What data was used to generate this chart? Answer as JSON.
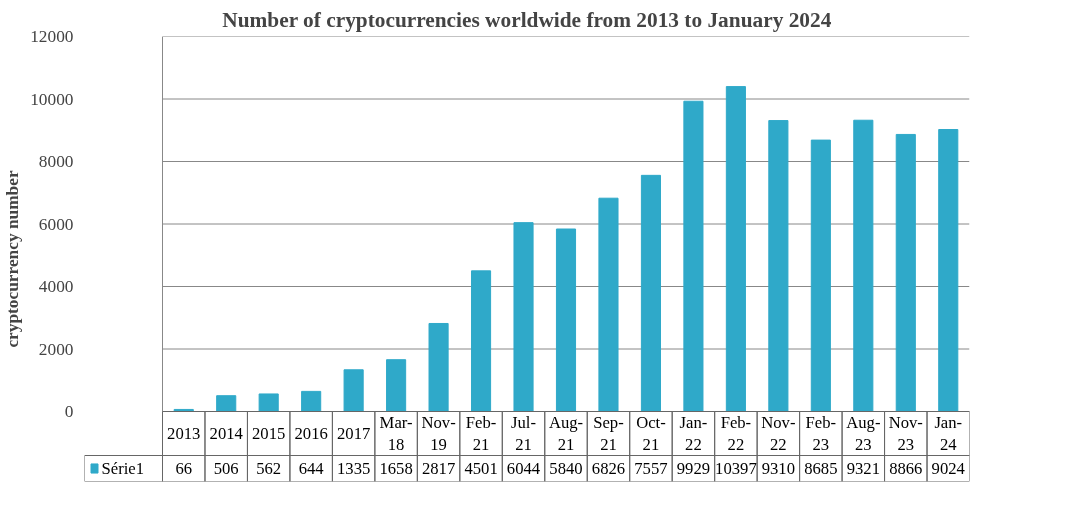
{
  "chart_data": {
    "type": "bar",
    "title": "Number of cryptocurrencies worldwide from 2013 to January 2024",
    "ylabel": "cryptocurrency number",
    "categories": [
      "2013",
      "2014",
      "2015",
      "2016",
      "2017",
      "Mar-18",
      "Nov-19",
      "Feb-21",
      "Jul-21",
      "Aug-21",
      "Sep-21",
      "Oct-21",
      "Jan-22",
      "Feb-22",
      "Nov-22",
      "Feb-23",
      "Aug-23",
      "Nov-23",
      "Jan-24"
    ],
    "series": [
      {
        "name": "Série1",
        "color": "#2fa9c9",
        "values": [
          66,
          506,
          562,
          644,
          1335,
          1658,
          2817,
          4501,
          6044,
          5840,
          6826,
          7557,
          9929,
          10397,
          9310,
          8685,
          9321,
          8866,
          9024
        ]
      }
    ],
    "ylim": [
      0,
      12000
    ],
    "yticks": [
      0,
      2000,
      4000,
      6000,
      8000,
      10000,
      12000
    ],
    "grid": "y",
    "data_labels": true,
    "legend": "bottom left"
  }
}
